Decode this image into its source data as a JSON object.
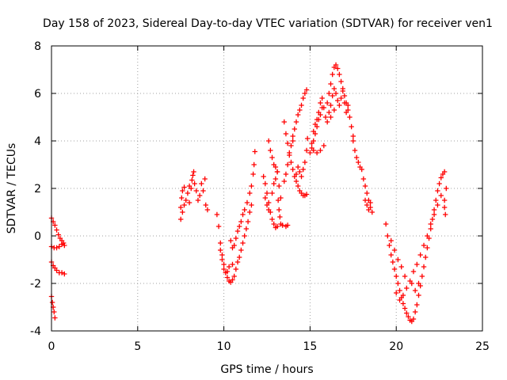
{
  "chart_data": {
    "type": "scatter",
    "title": "Day 158 of 2023, Sidereal Day-to-day VTEC variation (SDTVAR) for receiver ven1",
    "xlabel": "GPS time / hours",
    "ylabel": "SDTVAR / TECUs",
    "xlim": [
      0,
      25
    ],
    "ylim": [
      -4,
      8
    ],
    "xticks": [
      "0",
      "5",
      "10",
      "15",
      "20",
      "25"
    ],
    "yticks": [
      "-4",
      "-2",
      "0",
      "2",
      "4",
      "6",
      "8"
    ],
    "grid": true,
    "marker": "plus",
    "color": "#ff0000",
    "series": [
      {
        "points": [
          [
            0.0,
            0.75
          ],
          [
            0.1,
            0.6
          ],
          [
            0.2,
            0.45
          ],
          [
            0.3,
            0.25
          ],
          [
            0.4,
            0.05
          ],
          [
            0.5,
            -0.1
          ],
          [
            0.6,
            -0.2
          ],
          [
            0.7,
            -0.3
          ],
          [
            0.75,
            -0.4
          ],
          [
            0.0,
            -0.45
          ],
          [
            0.15,
            -0.5
          ],
          [
            0.3,
            -0.5
          ],
          [
            0.45,
            -0.45
          ],
          [
            0.6,
            -0.35
          ],
          [
            0.0,
            -1.1
          ],
          [
            0.1,
            -1.25
          ],
          [
            0.2,
            -1.35
          ],
          [
            0.3,
            -1.45
          ],
          [
            0.45,
            -1.55
          ],
          [
            0.6,
            -1.55
          ],
          [
            0.75,
            -1.6
          ],
          [
            0.0,
            -2.55
          ],
          [
            0.05,
            -2.8
          ],
          [
            0.1,
            -3.0
          ],
          [
            0.15,
            -3.2
          ],
          [
            0.2,
            -3.45
          ],
          [
            7.5,
            1.2
          ],
          [
            7.55,
            1.6
          ],
          [
            7.6,
            1.9
          ],
          [
            7.7,
            2.05
          ],
          [
            7.8,
            1.5
          ],
          [
            7.9,
            1.8
          ],
          [
            8.0,
            2.1
          ],
          [
            8.1,
            2.0
          ],
          [
            8.15,
            2.35
          ],
          [
            8.2,
            2.55
          ],
          [
            8.25,
            2.7
          ],
          [
            8.3,
            2.2
          ],
          [
            8.4,
            1.9
          ],
          [
            8.5,
            1.5
          ],
          [
            8.6,
            1.7
          ],
          [
            8.7,
            2.2
          ],
          [
            8.8,
            1.9
          ],
          [
            8.9,
            2.4
          ],
          [
            8.95,
            1.3
          ],
          [
            9.05,
            1.1
          ],
          [
            7.5,
            0.7
          ],
          [
            7.6,
            1.0
          ],
          [
            7.7,
            1.3
          ],
          [
            8.0,
            1.4
          ],
          [
            9.6,
            0.9
          ],
          [
            9.7,
            0.4
          ],
          [
            9.8,
            -0.3
          ],
          [
            9.9,
            -0.8
          ],
          [
            10.0,
            -1.2
          ],
          [
            10.1,
            -1.55
          ],
          [
            10.2,
            -1.75
          ],
          [
            10.3,
            -1.9
          ],
          [
            10.4,
            -1.95
          ],
          [
            10.5,
            -1.85
          ],
          [
            10.6,
            -1.7
          ],
          [
            10.7,
            -1.4
          ],
          [
            10.8,
            -1.1
          ],
          [
            10.9,
            -0.9
          ],
          [
            11.0,
            -0.6
          ],
          [
            11.1,
            -0.3
          ],
          [
            11.2,
            0.0
          ],
          [
            11.3,
            0.3
          ],
          [
            11.4,
            0.6
          ],
          [
            11.5,
            1.0
          ],
          [
            11.6,
            1.3
          ],
          [
            10.4,
            -0.2
          ],
          [
            10.5,
            -0.5
          ],
          [
            10.6,
            -0.4
          ],
          [
            10.7,
            -0.1
          ],
          [
            10.8,
            0.2
          ],
          [
            10.9,
            0.4
          ],
          [
            11.0,
            0.6
          ],
          [
            11.1,
            0.9
          ],
          [
            11.2,
            1.1
          ],
          [
            11.35,
            1.4
          ],
          [
            11.5,
            1.8
          ],
          [
            11.6,
            2.1
          ],
          [
            11.7,
            2.6
          ],
          [
            11.75,
            3.0
          ],
          [
            11.8,
            3.55
          ],
          [
            9.8,
            -0.6
          ],
          [
            9.9,
            -1.0
          ],
          [
            10.0,
            -1.4
          ],
          [
            10.2,
            -1.5
          ],
          [
            10.3,
            -1.3
          ],
          [
            10.5,
            -1.2
          ],
          [
            12.3,
            2.5
          ],
          [
            12.4,
            2.2
          ],
          [
            12.5,
            1.8
          ],
          [
            12.6,
            1.4
          ],
          [
            12.7,
            1.0
          ],
          [
            12.8,
            0.7
          ],
          [
            12.9,
            0.5
          ],
          [
            13.0,
            0.35
          ],
          [
            13.1,
            0.4
          ],
          [
            12.4,
            1.6
          ],
          [
            12.5,
            1.3
          ],
          [
            12.6,
            1.1
          ],
          [
            12.8,
            1.8
          ],
          [
            12.9,
            2.2
          ],
          [
            13.0,
            2.4
          ],
          [
            13.1,
            2.7
          ],
          [
            13.2,
            2.1
          ],
          [
            13.3,
            1.6
          ],
          [
            13.15,
            1.5
          ],
          [
            13.2,
            1.1
          ],
          [
            13.25,
            0.8
          ],
          [
            13.3,
            0.5
          ],
          [
            13.4,
            0.45
          ],
          [
            13.6,
            0.4
          ],
          [
            13.7,
            0.45
          ],
          [
            12.6,
            4.0
          ],
          [
            12.7,
            3.6
          ],
          [
            12.8,
            3.3
          ],
          [
            12.9,
            3.0
          ],
          [
            13.0,
            2.9
          ],
          [
            13.1,
            2.7
          ],
          [
            13.5,
            2.3
          ],
          [
            13.6,
            2.6
          ],
          [
            13.7,
            3.0
          ],
          [
            13.8,
            3.4
          ],
          [
            13.9,
            3.8
          ],
          [
            14.0,
            4.0
          ],
          [
            13.5,
            4.8
          ],
          [
            13.6,
            4.3
          ],
          [
            13.7,
            3.9
          ],
          [
            13.8,
            3.5
          ],
          [
            13.9,
            3.1
          ],
          [
            14.0,
            2.8
          ],
          [
            14.1,
            2.5
          ],
          [
            14.2,
            2.3
          ],
          [
            14.3,
            2.1
          ],
          [
            14.4,
            1.9
          ],
          [
            14.5,
            1.8
          ],
          [
            14.6,
            1.7
          ],
          [
            14.7,
            1.7
          ],
          [
            14.8,
            1.75
          ],
          [
            14.0,
            4.2
          ],
          [
            14.1,
            4.5
          ],
          [
            14.2,
            4.8
          ],
          [
            14.3,
            5.1
          ],
          [
            14.4,
            5.3
          ],
          [
            14.5,
            5.5
          ],
          [
            14.6,
            5.8
          ],
          [
            14.7,
            6.0
          ],
          [
            14.8,
            6.15
          ],
          [
            14.2,
            2.6
          ],
          [
            14.3,
            2.9
          ],
          [
            14.4,
            2.7
          ],
          [
            14.5,
            2.5
          ],
          [
            14.6,
            2.8
          ],
          [
            14.7,
            3.1
          ],
          [
            14.8,
            3.6
          ],
          [
            14.85,
            4.1
          ],
          [
            15.0,
            3.5
          ],
          [
            15.1,
            3.7
          ],
          [
            15.2,
            4.0
          ],
          [
            15.3,
            4.3
          ],
          [
            15.4,
            4.6
          ],
          [
            15.5,
            4.9
          ],
          [
            15.6,
            5.1
          ],
          [
            15.7,
            5.4
          ],
          [
            15.2,
            4.4
          ],
          [
            15.3,
            4.7
          ],
          [
            15.4,
            4.9
          ],
          [
            15.5,
            5.2
          ],
          [
            15.6,
            5.6
          ],
          [
            15.7,
            5.8
          ],
          [
            15.8,
            5.4
          ],
          [
            15.9,
            5.0
          ],
          [
            15.1,
            3.9
          ],
          [
            15.2,
            3.6
          ],
          [
            15.4,
            3.5
          ],
          [
            15.6,
            3.6
          ],
          [
            15.8,
            3.8
          ],
          [
            16.0,
            5.6
          ],
          [
            16.1,
            6.0
          ],
          [
            16.2,
            6.4
          ],
          [
            16.3,
            6.8
          ],
          [
            16.4,
            7.1
          ],
          [
            16.5,
            7.2
          ],
          [
            16.6,
            7.05
          ],
          [
            16.7,
            6.8
          ],
          [
            16.8,
            6.5
          ],
          [
            16.9,
            6.2
          ],
          [
            17.0,
            5.9
          ],
          [
            17.1,
            5.6
          ],
          [
            17.2,
            5.3
          ],
          [
            17.3,
            5.0
          ],
          [
            17.4,
            4.6
          ],
          [
            17.5,
            4.2
          ],
          [
            16.1,
            5.2
          ],
          [
            16.2,
            5.5
          ],
          [
            16.3,
            5.9
          ],
          [
            16.4,
            6.2
          ],
          [
            16.5,
            6.0
          ],
          [
            16.6,
            5.7
          ],
          [
            16.7,
            5.5
          ],
          [
            16.8,
            5.8
          ],
          [
            16.9,
            6.1
          ],
          [
            17.0,
            5.6
          ],
          [
            17.1,
            5.2
          ],
          [
            17.2,
            5.5
          ],
          [
            16.0,
            4.8
          ],
          [
            16.2,
            5.0
          ],
          [
            16.4,
            5.3
          ],
          [
            17.5,
            4.0
          ],
          [
            17.6,
            3.6
          ],
          [
            17.7,
            3.3
          ],
          [
            17.8,
            3.1
          ],
          [
            17.9,
            2.9
          ],
          [
            18.0,
            2.8
          ],
          [
            18.1,
            2.4
          ],
          [
            18.2,
            2.1
          ],
          [
            18.3,
            1.8
          ],
          [
            18.4,
            1.5
          ],
          [
            18.5,
            1.2
          ],
          [
            18.6,
            1.0
          ],
          [
            18.2,
            1.5
          ],
          [
            18.3,
            1.3
          ],
          [
            18.4,
            1.1
          ],
          [
            18.5,
            1.4
          ],
          [
            19.4,
            0.5
          ],
          [
            19.5,
            0.0
          ],
          [
            19.6,
            -0.4
          ],
          [
            19.7,
            -0.8
          ],
          [
            19.8,
            -1.1
          ],
          [
            19.9,
            -1.4
          ],
          [
            20.0,
            -1.7
          ],
          [
            20.1,
            -2.0
          ],
          [
            20.2,
            -2.3
          ],
          [
            20.3,
            -2.6
          ],
          [
            20.4,
            -2.85
          ],
          [
            20.5,
            -3.05
          ],
          [
            20.6,
            -3.25
          ],
          [
            20.7,
            -3.4
          ],
          [
            20.8,
            -3.55
          ],
          [
            20.9,
            -3.6
          ],
          [
            21.0,
            -3.5
          ],
          [
            21.1,
            -3.2
          ],
          [
            21.2,
            -2.9
          ],
          [
            21.3,
            -2.5
          ],
          [
            21.4,
            -2.1
          ],
          [
            21.5,
            -1.7
          ],
          [
            21.6,
            -1.3
          ],
          [
            21.7,
            -0.9
          ],
          [
            21.8,
            -0.5
          ],
          [
            21.9,
            -0.1
          ],
          [
            22.0,
            0.3
          ],
          [
            22.1,
            0.7
          ],
          [
            22.2,
            1.1
          ],
          [
            22.3,
            1.5
          ],
          [
            22.4,
            1.9
          ],
          [
            22.5,
            2.2
          ],
          [
            22.6,
            2.45
          ],
          [
            22.7,
            2.6
          ],
          [
            22.8,
            2.7
          ],
          [
            20.0,
            -2.4
          ],
          [
            20.2,
            -2.7
          ],
          [
            20.4,
            -2.5
          ],
          [
            20.6,
            -2.2
          ],
          [
            20.8,
            -1.9
          ],
          [
            21.0,
            -1.5
          ],
          [
            21.2,
            -1.2
          ],
          [
            21.4,
            -0.8
          ],
          [
            21.6,
            -0.4
          ],
          [
            21.8,
            0.0
          ],
          [
            22.0,
            0.5
          ],
          [
            22.2,
            0.9
          ],
          [
            22.4,
            1.3
          ],
          [
            22.6,
            1.7
          ],
          [
            22.8,
            1.2
          ],
          [
            22.85,
            0.9
          ],
          [
            22.8,
            1.5
          ],
          [
            22.9,
            2.0
          ],
          [
            20.9,
            -2.0
          ],
          [
            21.1,
            -2.3
          ],
          [
            21.3,
            -2.0
          ],
          [
            20.5,
            -1.7
          ],
          [
            20.3,
            -1.3
          ],
          [
            20.1,
            -1.0
          ],
          [
            19.9,
            -0.6
          ],
          [
            19.7,
            -0.2
          ]
        ]
      }
    ]
  }
}
